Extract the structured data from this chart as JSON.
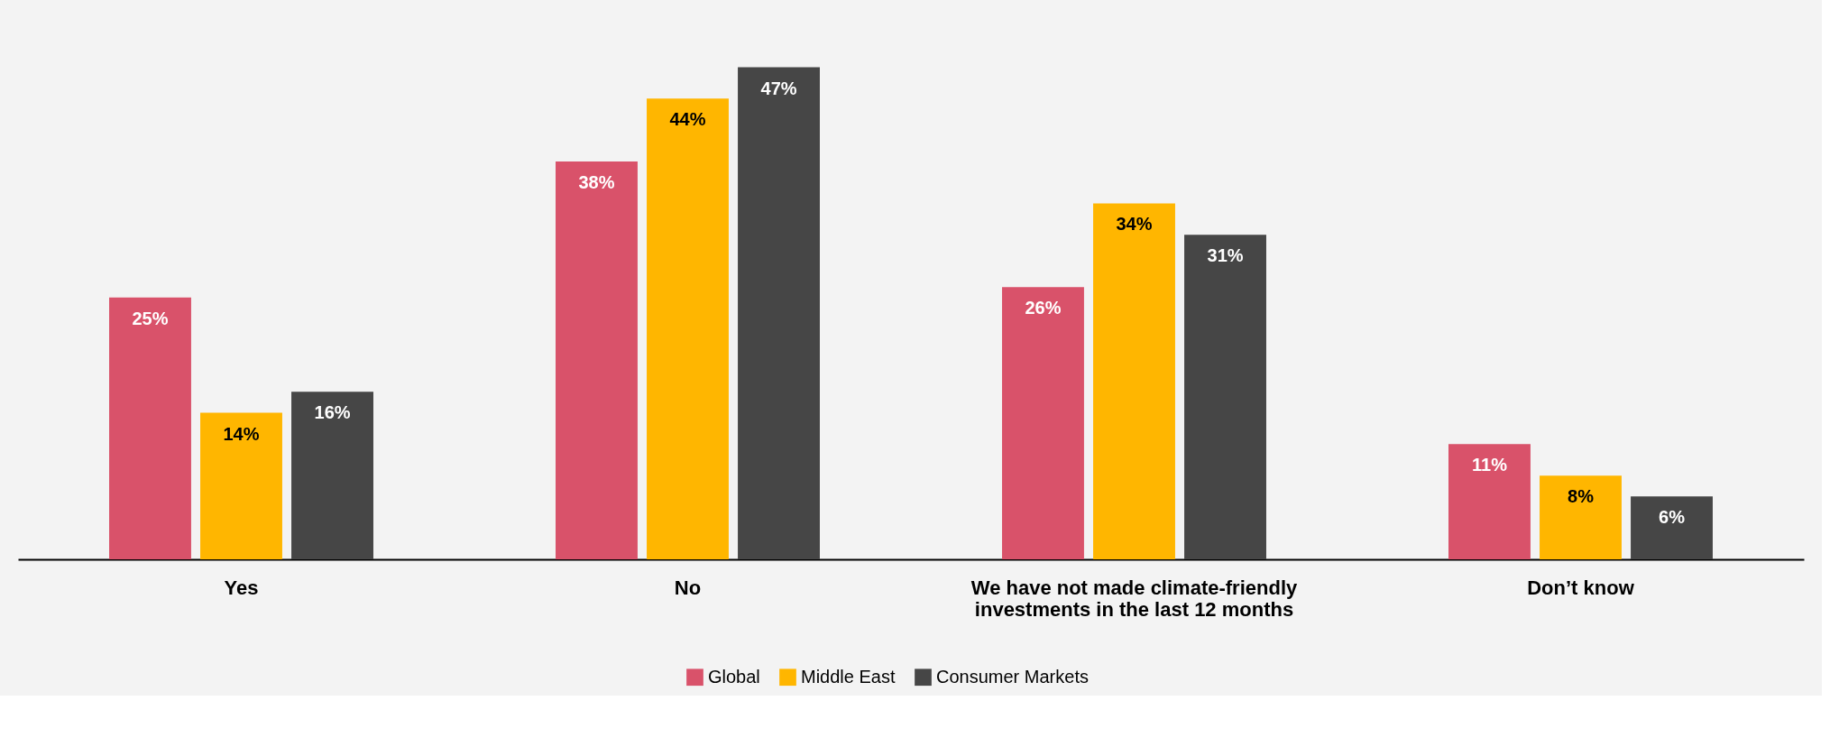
{
  "chart_data": {
    "type": "bar",
    "categories": [
      "Yes",
      "No",
      "We have not made climate-friendly investments in the last 12 months",
      "Don’t know"
    ],
    "series": [
      {
        "name": "Global",
        "color": "#d9526a",
        "values": [
          25,
          38,
          26,
          11
        ],
        "value_labels": [
          "25%",
          "38%",
          "26%",
          "11%"
        ]
      },
      {
        "name": "Middle East",
        "color": "#ffb600",
        "values": [
          14,
          44,
          34,
          8
        ],
        "value_labels": [
          "14%",
          "44%",
          "34%",
          "8%"
        ]
      },
      {
        "name": "Consumer Markets",
        "color": "#464646",
        "values": [
          16,
          47,
          31,
          6
        ],
        "value_labels": [
          "16%",
          "47%",
          "31%",
          "6%"
        ]
      }
    ],
    "legend": "bottom"
  }
}
